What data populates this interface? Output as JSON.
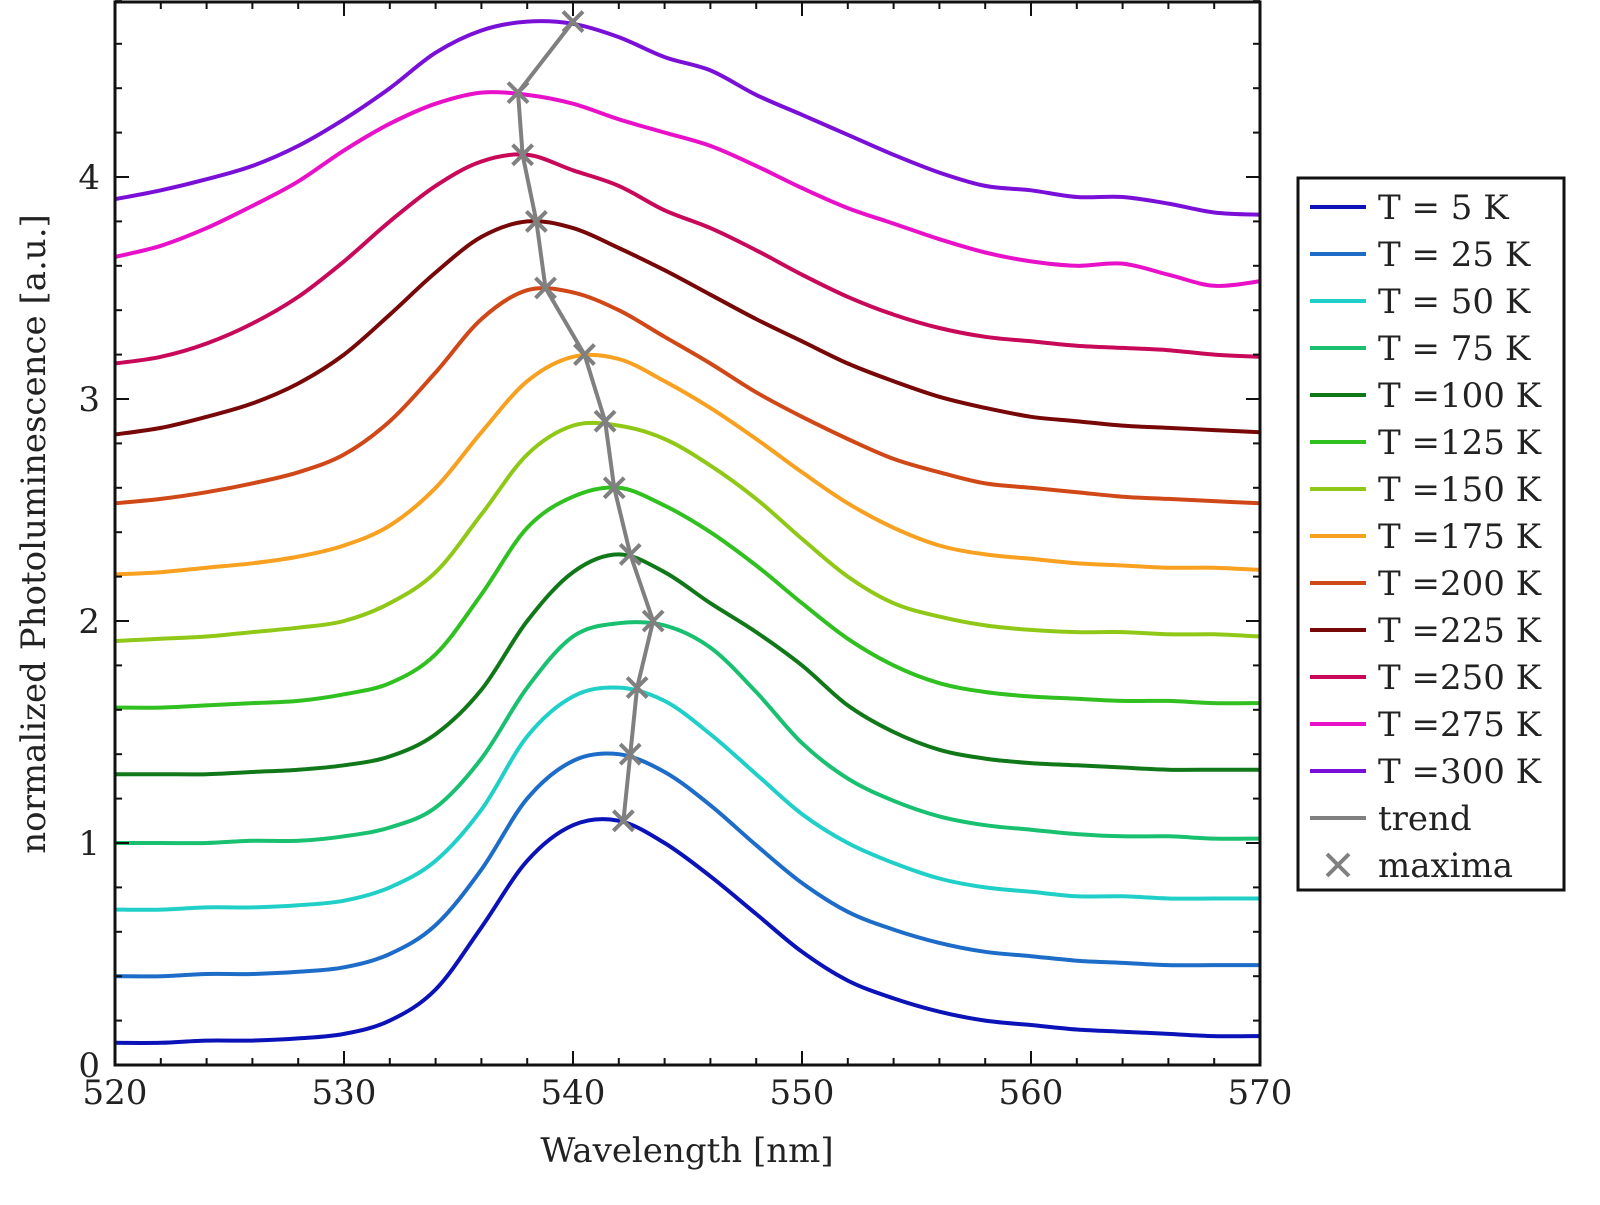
{
  "chart_data": {
    "type": "line",
    "title": "",
    "xlabel": "Wavelength [nm]",
    "ylabel": "normalized Photoluminescence [a.u.]",
    "xlim": [
      520,
      570
    ],
    "ylim": [
      0,
      4.8
    ],
    "x_ticks": [
      "520",
      "530",
      "540",
      "550",
      "560",
      "570"
    ],
    "y_ticks": [
      "0",
      "1",
      "2",
      "3",
      "4"
    ],
    "grid": false,
    "legend_position": "right",
    "x": [
      520,
      522,
      524,
      526,
      528,
      530,
      532,
      534,
      536,
      538,
      540,
      542,
      544,
      546,
      548,
      550,
      552,
      554,
      556,
      558,
      560,
      562,
      564,
      566,
      568,
      570
    ],
    "series": [
      {
        "name": "T = 5 K",
        "color": "#0a12b8",
        "values": [
          0.1,
          0.1,
          0.11,
          0.11,
          0.12,
          0.14,
          0.2,
          0.34,
          0.62,
          0.92,
          1.08,
          1.1,
          1.0,
          0.85,
          0.68,
          0.51,
          0.38,
          0.3,
          0.24,
          0.2,
          0.18,
          0.16,
          0.15,
          0.14,
          0.13,
          0.13
        ]
      },
      {
        "name": "T = 25 K",
        "color": "#1c6cc8",
        "values": [
          0.4,
          0.4,
          0.41,
          0.41,
          0.42,
          0.44,
          0.5,
          0.63,
          0.88,
          1.2,
          1.37,
          1.4,
          1.32,
          1.17,
          0.99,
          0.82,
          0.69,
          0.61,
          0.55,
          0.51,
          0.49,
          0.47,
          0.46,
          0.45,
          0.45,
          0.45
        ]
      },
      {
        "name": "T = 50 K",
        "color": "#20d0c8",
        "values": [
          0.7,
          0.7,
          0.71,
          0.71,
          0.72,
          0.74,
          0.8,
          0.92,
          1.15,
          1.48,
          1.66,
          1.7,
          1.64,
          1.49,
          1.31,
          1.13,
          1.0,
          0.91,
          0.84,
          0.8,
          0.78,
          0.76,
          0.76,
          0.75,
          0.75,
          0.75
        ]
      },
      {
        "name": "T = 75 K",
        "color": "#18c070",
        "values": [
          1.0,
          1.0,
          1.0,
          1.01,
          1.01,
          1.03,
          1.07,
          1.16,
          1.38,
          1.7,
          1.93,
          1.99,
          1.98,
          1.88,
          1.68,
          1.45,
          1.29,
          1.19,
          1.12,
          1.08,
          1.06,
          1.04,
          1.03,
          1.03,
          1.02,
          1.02
        ]
      },
      {
        "name": "T =100 K",
        "color": "#107818",
        "values": [
          1.31,
          1.31,
          1.31,
          1.32,
          1.33,
          1.35,
          1.39,
          1.49,
          1.69,
          2.0,
          2.22,
          2.3,
          2.22,
          2.08,
          1.95,
          1.8,
          1.62,
          1.5,
          1.42,
          1.38,
          1.36,
          1.35,
          1.34,
          1.33,
          1.33,
          1.33
        ]
      },
      {
        "name": "T =125 K",
        "color": "#30c020",
        "values": [
          1.61,
          1.61,
          1.62,
          1.63,
          1.64,
          1.67,
          1.72,
          1.85,
          2.12,
          2.42,
          2.56,
          2.6,
          2.52,
          2.4,
          2.25,
          2.08,
          1.92,
          1.8,
          1.72,
          1.68,
          1.66,
          1.65,
          1.64,
          1.64,
          1.63,
          1.63
        ]
      },
      {
        "name": "T =150 K",
        "color": "#90c818",
        "values": [
          1.91,
          1.92,
          1.93,
          1.95,
          1.97,
          2.0,
          2.08,
          2.22,
          2.48,
          2.75,
          2.88,
          2.88,
          2.82,
          2.7,
          2.55,
          2.37,
          2.2,
          2.08,
          2.02,
          1.98,
          1.96,
          1.95,
          1.95,
          1.94,
          1.94,
          1.93
        ]
      },
      {
        "name": "T =175 K",
        "color": "#f8a020",
        "values": [
          2.21,
          2.22,
          2.24,
          2.26,
          2.29,
          2.34,
          2.43,
          2.6,
          2.85,
          3.08,
          3.19,
          3.18,
          3.08,
          2.96,
          2.82,
          2.67,
          2.53,
          2.42,
          2.34,
          2.3,
          2.28,
          2.26,
          2.25,
          2.24,
          2.24,
          2.23
        ]
      },
      {
        "name": "T =200 K",
        "color": "#d04818",
        "values": [
          2.53,
          2.55,
          2.58,
          2.62,
          2.67,
          2.75,
          2.9,
          3.12,
          3.36,
          3.49,
          3.48,
          3.4,
          3.28,
          3.16,
          3.03,
          2.92,
          2.82,
          2.73,
          2.67,
          2.62,
          2.6,
          2.58,
          2.56,
          2.55,
          2.54,
          2.53
        ]
      },
      {
        "name": "T =225 K",
        "color": "#780808",
        "values": [
          2.84,
          2.87,
          2.92,
          2.98,
          3.07,
          3.2,
          3.38,
          3.57,
          3.73,
          3.8,
          3.77,
          3.68,
          3.58,
          3.47,
          3.36,
          3.26,
          3.16,
          3.08,
          3.01,
          2.96,
          2.92,
          2.9,
          2.88,
          2.87,
          2.86,
          2.85
        ]
      },
      {
        "name": "T =250 K",
        "color": "#c80858",
        "values": [
          3.16,
          3.19,
          3.25,
          3.34,
          3.46,
          3.62,
          3.8,
          3.96,
          4.07,
          4.1,
          4.03,
          3.96,
          3.85,
          3.77,
          3.67,
          3.56,
          3.46,
          3.38,
          3.32,
          3.28,
          3.26,
          3.24,
          3.23,
          3.22,
          3.2,
          3.19
        ]
      },
      {
        "name": "T =275 K",
        "color": "#e810c8",
        "values": [
          3.64,
          3.69,
          3.77,
          3.87,
          3.98,
          4.12,
          4.24,
          4.33,
          4.38,
          4.37,
          4.33,
          4.26,
          4.2,
          4.14,
          4.05,
          3.95,
          3.86,
          3.79,
          3.72,
          3.66,
          3.62,
          3.6,
          3.61,
          3.56,
          3.51,
          3.53
        ]
      },
      {
        "name": "T =300 K",
        "color": "#7a10d8",
        "values": [
          3.9,
          3.94,
          3.99,
          4.05,
          4.14,
          4.26,
          4.4,
          4.56,
          4.66,
          4.7,
          4.69,
          4.63,
          4.54,
          4.48,
          4.37,
          4.28,
          4.19,
          4.1,
          4.02,
          3.96,
          3.94,
          3.91,
          3.91,
          3.88,
          3.84,
          3.83
        ]
      }
    ],
    "trend": {
      "name": "trend",
      "color": "#808080",
      "x": [
        542.2,
        542.5,
        542.8,
        543.5,
        542.5,
        541.8,
        541.4,
        540.5,
        538.8,
        538.4,
        537.8,
        537.6,
        540.0
      ],
      "y": [
        1.1,
        1.4,
        1.7,
        2.0,
        2.3,
        2.6,
        2.9,
        3.2,
        3.5,
        3.8,
        4.1,
        4.38,
        4.7
      ]
    },
    "maxima": {
      "name": "maxima",
      "color": "#808080",
      "marker": "x"
    }
  }
}
